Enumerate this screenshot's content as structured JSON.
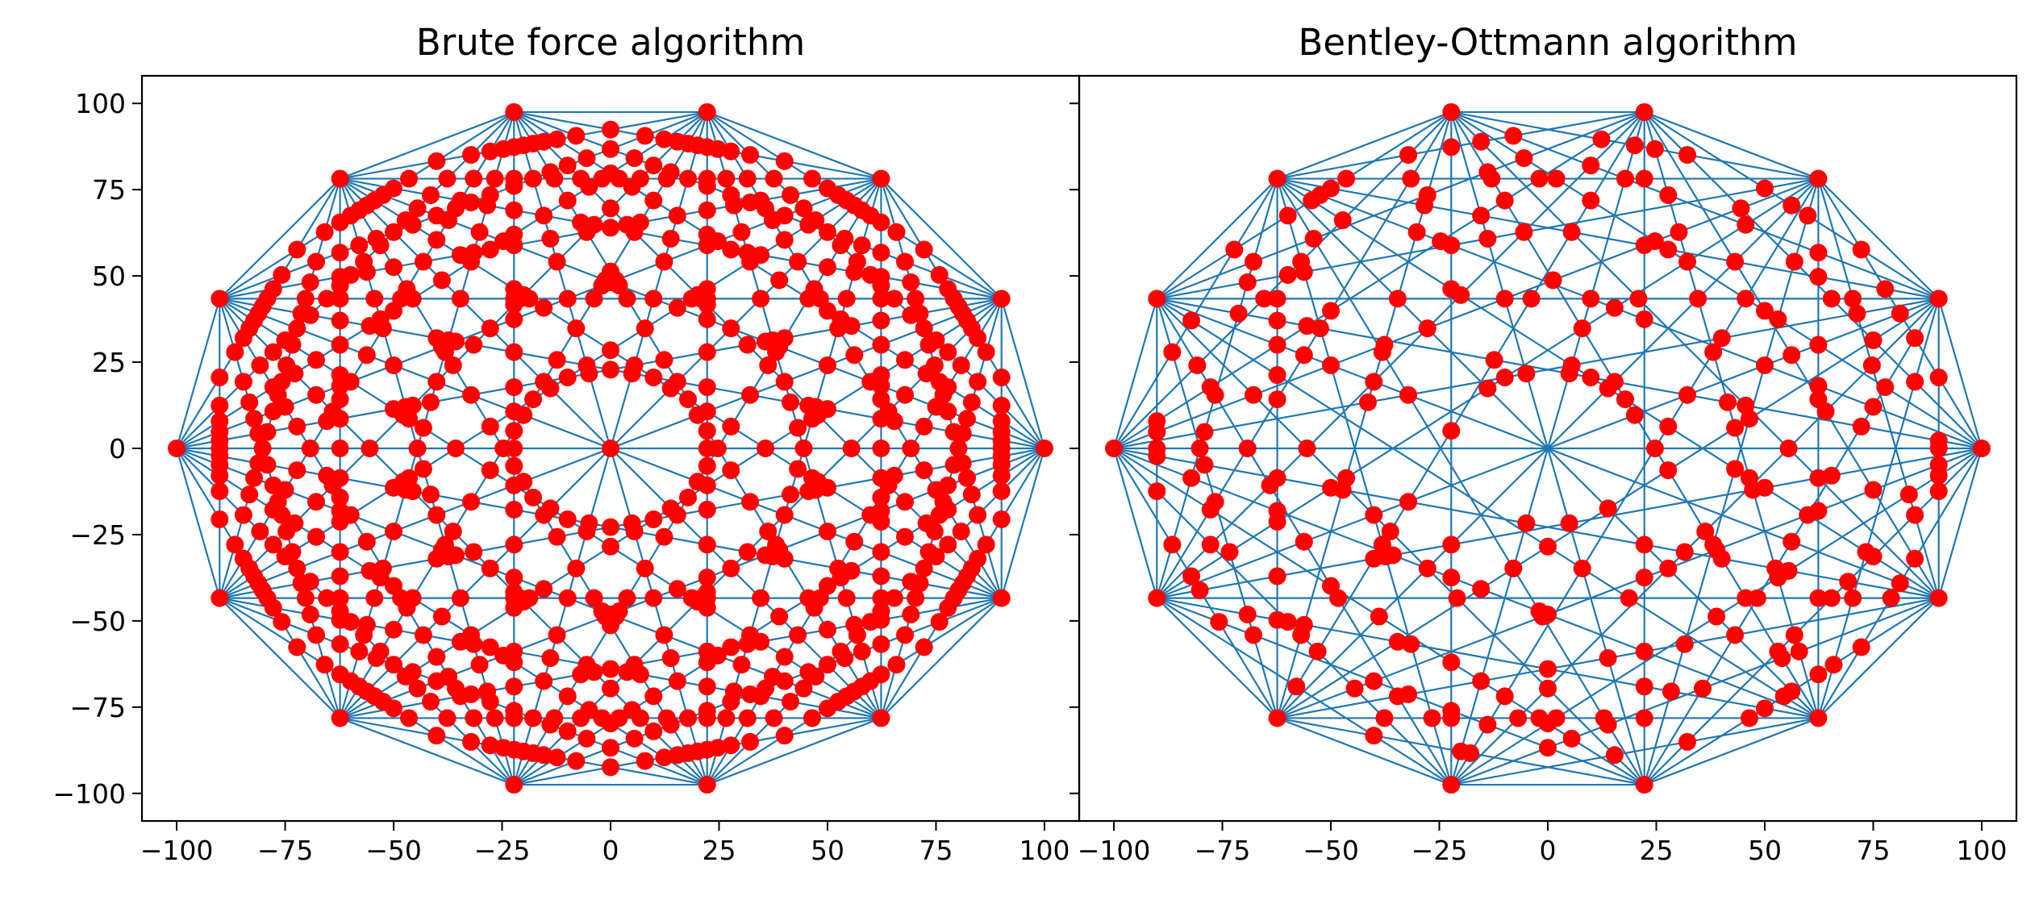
{
  "chart_data": [
    {
      "type": "scatter",
      "title": "Brute force algorithm",
      "xlabel": "",
      "ylabel": "",
      "xlim": [
        -108,
        108
      ],
      "ylim": [
        -108,
        108
      ],
      "xticks": [
        -100,
        -75,
        -50,
        -25,
        0,
        25,
        50,
        75,
        100
      ],
      "yticks": [
        -100,
        -75,
        -50,
        -25,
        0,
        25,
        50,
        75,
        100
      ],
      "xtick_labels": [
        "−100",
        "−75",
        "−50",
        "−25",
        "0",
        "25",
        "50",
        "75",
        "100"
      ],
      "ytick_labels": [
        "−100",
        "−75",
        "−50",
        "−25",
        "0",
        "25",
        "50",
        "75",
        "100"
      ],
      "polygon": {
        "sides": 14,
        "radius": 100,
        "start_angle_deg": 0
      },
      "segments": "all chords between the 14 polygon vertices",
      "intersections": "all pairwise chord intersections",
      "line_color": "#1f77b4",
      "point_color": "#ff0000",
      "grid": false,
      "legend": "none"
    },
    {
      "type": "scatter",
      "title": "Bentley-Ottmann algorithm",
      "xlabel": "",
      "ylabel": "",
      "xlim": [
        -108,
        108
      ],
      "ylim": [
        -108,
        108
      ],
      "xticks": [
        -100,
        -75,
        -50,
        -25,
        0,
        25,
        50,
        75,
        100
      ],
      "yticks": [
        -100,
        -75,
        -50,
        -25,
        0,
        25,
        50,
        75,
        100
      ],
      "xtick_labels": [
        "−100",
        "−75",
        "−50",
        "−25",
        "0",
        "25",
        "50",
        "75",
        "100"
      ],
      "ytick_labels": [],
      "polygon": {
        "sides": 14,
        "radius": 100,
        "start_angle_deg": 0
      },
      "segments": "all chords between the 14 polygon vertices",
      "intersections": "subset of chord intersections reported",
      "line_color": "#1f77b4",
      "point_color": "#ff0000",
      "grid": false,
      "legend": "none"
    }
  ]
}
